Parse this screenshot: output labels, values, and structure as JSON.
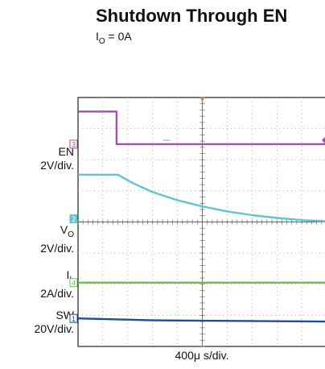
{
  "header": {
    "title": "Shutdown Through EN",
    "condition_symbol": "I",
    "condition_sub": "O",
    "condition_value": " = 0A"
  },
  "chart_data": {
    "type": "line",
    "title": "Shutdown Through EN",
    "subtitle": "IO = 0A",
    "xlabel": "400μ s/div.",
    "x_divisions": 10,
    "y_divisions": 8,
    "grid": true,
    "series": [
      {
        "name": "EN",
        "label_main": "EN",
        "label_sub": "",
        "scale": "2V/div.",
        "marker": "3",
        "color": "#a54fa8",
        "points": [
          [
            0,
            7.55
          ],
          [
            1.55,
            7.55
          ],
          [
            1.55,
            6.5
          ],
          [
            10,
            6.5
          ]
        ]
      },
      {
        "name": "VO",
        "label_main": "V",
        "label_sub": "O",
        "scale": "2V/div.",
        "marker": "2",
        "color": "#5ec6d3",
        "points": [
          [
            0,
            5.52
          ],
          [
            1.6,
            5.52
          ],
          [
            2.2,
            5.25
          ],
          [
            3.0,
            4.96
          ],
          [
            4.0,
            4.7
          ],
          [
            5.0,
            4.5
          ],
          [
            6.0,
            4.34
          ],
          [
            7.0,
            4.22
          ],
          [
            8.0,
            4.13
          ],
          [
            9.0,
            4.06
          ],
          [
            10,
            4.02
          ]
        ]
      },
      {
        "name": "IL",
        "label_main": "I",
        "label_sub": "L",
        "scale": "2A/div.",
        "marker": "4",
        "color": "#6cc24a",
        "points": [
          [
            0,
            2.05
          ],
          [
            10,
            2.05
          ]
        ]
      },
      {
        "name": "SW",
        "label_main": "SW",
        "label_sub": "",
        "scale": "20V/div.",
        "marker": "1",
        "color": "#1b4f9c",
        "points": [
          [
            0,
            0.9
          ],
          [
            3.0,
            0.84
          ],
          [
            10,
            0.8
          ]
        ]
      }
    ]
  }
}
